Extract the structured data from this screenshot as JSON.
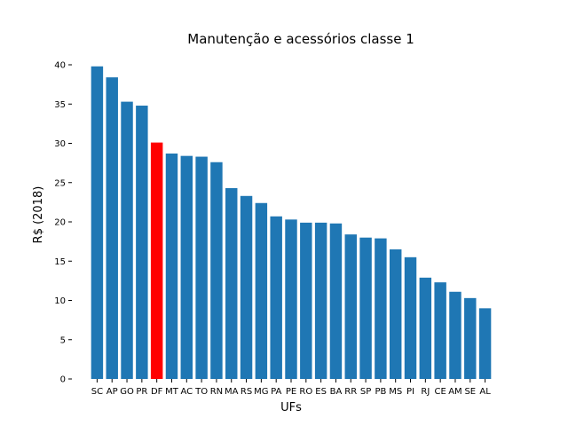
{
  "chart_data": {
    "type": "bar",
    "title": "Manutenção e acessórios classe 1",
    "xlabel": "UFs",
    "ylabel": "R$ (2018)",
    "ylim": [
      0,
      40
    ],
    "yticks": [
      "0",
      "5",
      "10",
      "15",
      "20",
      "25",
      "30",
      "35",
      "40"
    ],
    "categories": [
      "SC",
      "AP",
      "GO",
      "PR",
      "DF",
      "MT",
      "AC",
      "TO",
      "RN",
      "MA",
      "RS",
      "MG",
      "PA",
      "PE",
      "RO",
      "ES",
      "BA",
      "RR",
      "SP",
      "PB",
      "MS",
      "PI",
      "RJ",
      "CE",
      "AM",
      "SE",
      "AL"
    ],
    "values": [
      39.8,
      38.4,
      35.3,
      34.8,
      30.1,
      28.7,
      28.4,
      28.3,
      27.6,
      24.3,
      23.3,
      22.4,
      20.7,
      20.3,
      19.9,
      19.9,
      19.8,
      18.4,
      18.0,
      17.9,
      16.5,
      15.5,
      12.9,
      12.3,
      11.1,
      10.3,
      9.0
    ],
    "highlight": "DF",
    "bar_color": "#1f77b4",
    "highlight_color": "#ff0000",
    "grid": false
  }
}
